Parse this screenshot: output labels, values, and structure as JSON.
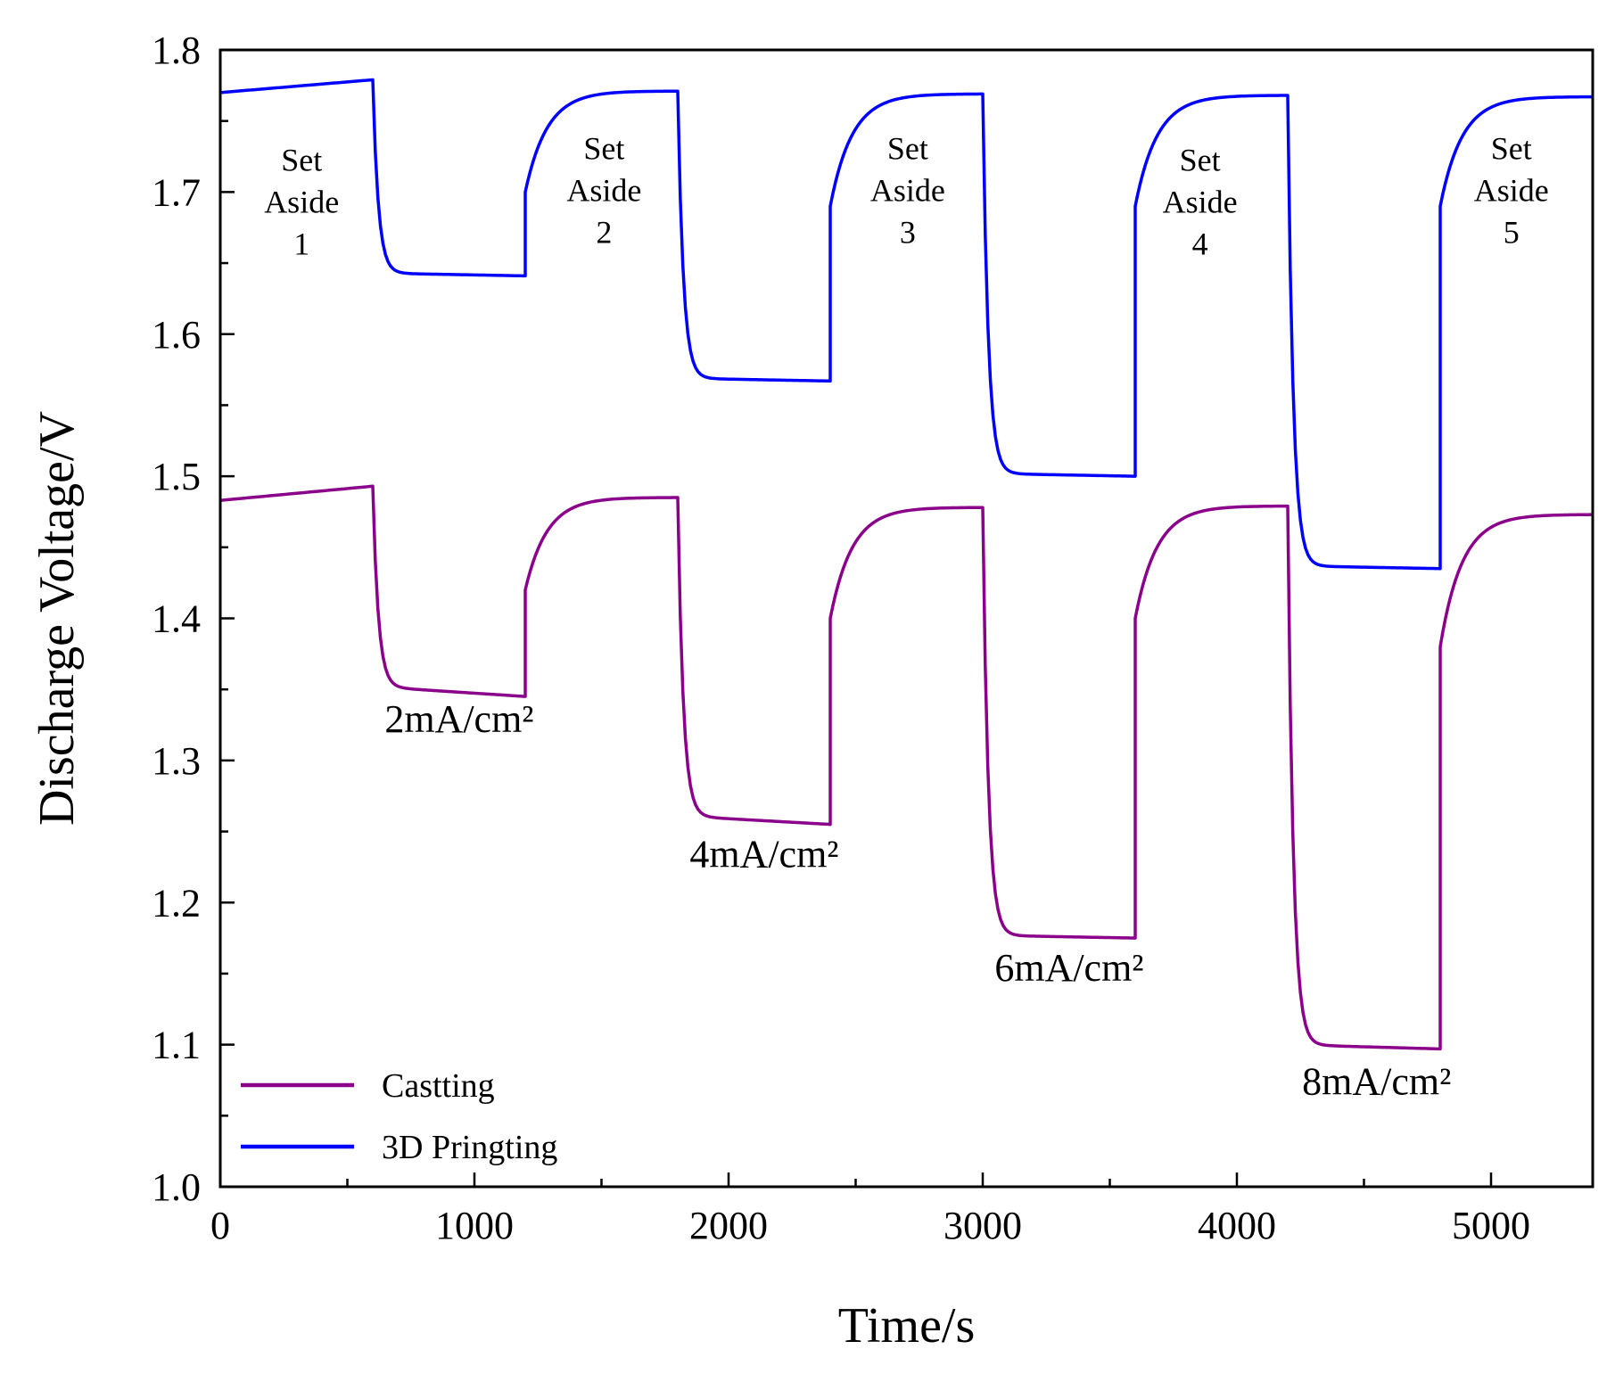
{
  "chart_data": {
    "type": "line",
    "xlabel": "Time/s",
    "ylabel": "Discharge Voltage/V",
    "xlim": [
      0,
      5400
    ],
    "ylim": [
      1.0,
      1.8
    ],
    "x_ticks": [
      0,
      1000,
      2000,
      3000,
      4000,
      5000
    ],
    "x_tick_labels": [
      "0",
      "1000",
      "2000",
      "3000",
      "4000",
      "5000"
    ],
    "y_ticks": [
      1.0,
      1.1,
      1.2,
      1.3,
      1.4,
      1.5,
      1.6,
      1.7,
      1.8
    ],
    "y_tick_labels": [
      "1.0",
      "1.1",
      "1.2",
      "1.3",
      "1.4",
      "1.5",
      "1.6",
      "1.7",
      "1.8"
    ],
    "legend_position": "bottom-left",
    "series": [
      {
        "name": "Castting",
        "color": "#8B008B",
        "segments": [
          {
            "phase": "rest",
            "t0": 0,
            "t1": 600,
            "v0": 1.483,
            "v1": 1.493
          },
          {
            "phase": "discharge",
            "t0": 600,
            "t1": 1200,
            "v_start": 1.493,
            "v0": 1.352,
            "v1": 1.345
          },
          {
            "phase": "rest",
            "t0": 1200,
            "t1": 1800,
            "v0": 1.42,
            "v1": 1.485
          },
          {
            "phase": "discharge",
            "t0": 1800,
            "t1": 2400,
            "v_start": 1.485,
            "v0": 1.261,
            "v1": 1.255
          },
          {
            "phase": "rest",
            "t0": 2400,
            "t1": 3000,
            "v0": 1.4,
            "v1": 1.478
          },
          {
            "phase": "discharge",
            "t0": 3000,
            "t1": 3600,
            "v_start": 1.478,
            "v0": 1.177,
            "v1": 1.175
          },
          {
            "phase": "rest",
            "t0": 3600,
            "t1": 4200,
            "v0": 1.4,
            "v1": 1.479
          },
          {
            "phase": "discharge",
            "t0": 4200,
            "t1": 4800,
            "v_start": 1.479,
            "v0": 1.1,
            "v1": 1.097
          },
          {
            "phase": "rest",
            "t0": 4800,
            "t1": 5400,
            "v0": 1.38,
            "v1": 1.473
          }
        ]
      },
      {
        "name": "3D Pringting",
        "color": "#0000FF",
        "segments": [
          {
            "phase": "rest",
            "t0": 0,
            "t1": 600,
            "v0": 1.77,
            "v1": 1.779
          },
          {
            "phase": "discharge",
            "t0": 600,
            "t1": 1200,
            "v_start": 1.779,
            "v0": 1.643,
            "v1": 1.641
          },
          {
            "phase": "rest",
            "t0": 1200,
            "t1": 1800,
            "v0": 1.7,
            "v1": 1.771
          },
          {
            "phase": "discharge",
            "t0": 1800,
            "t1": 2400,
            "v_start": 1.771,
            "v0": 1.569,
            "v1": 1.567
          },
          {
            "phase": "rest",
            "t0": 2400,
            "t1": 3000,
            "v0": 1.69,
            "v1": 1.769
          },
          {
            "phase": "discharge",
            "t0": 3000,
            "t1": 3600,
            "v_start": 1.769,
            "v0": 1.502,
            "v1": 1.5
          },
          {
            "phase": "rest",
            "t0": 3600,
            "t1": 4200,
            "v0": 1.69,
            "v1": 1.768
          },
          {
            "phase": "discharge",
            "t0": 4200,
            "t1": 4800,
            "v_start": 1.768,
            "v0": 1.437,
            "v1": 1.435
          },
          {
            "phase": "rest",
            "t0": 4800,
            "t1": 5400,
            "v0": 1.69,
            "v1": 1.767
          }
        ]
      }
    ],
    "annotations": {
      "set_aside": [
        {
          "line1": "Set",
          "line2": "Aside",
          "line3": "1",
          "x": 320,
          "y_top": 1.715
        },
        {
          "line1": "Set",
          "line2": "Aside",
          "line3": "2",
          "x": 1510,
          "y_top": 1.723
        },
        {
          "line1": "Set",
          "line2": "Aside",
          "line3": "3",
          "x": 2705,
          "y_top": 1.723
        },
        {
          "line1": "Set",
          "line2": "Aside",
          "line3": "4",
          "x": 3855,
          "y_top": 1.715
        },
        {
          "line1": "Set",
          "line2": "Aside",
          "line3": "5",
          "x": 5080,
          "y_top": 1.723
        }
      ],
      "current_density": [
        {
          "text": "2mA/cm²",
          "x": 940,
          "y": 1.32
        },
        {
          "text": "4mA/cm²",
          "x": 2140,
          "y": 1.225
        },
        {
          "text": "6mA/cm²",
          "x": 3340,
          "y": 1.145
        },
        {
          "text": "8mA/cm²",
          "x": 4550,
          "y": 1.065
        }
      ]
    }
  }
}
